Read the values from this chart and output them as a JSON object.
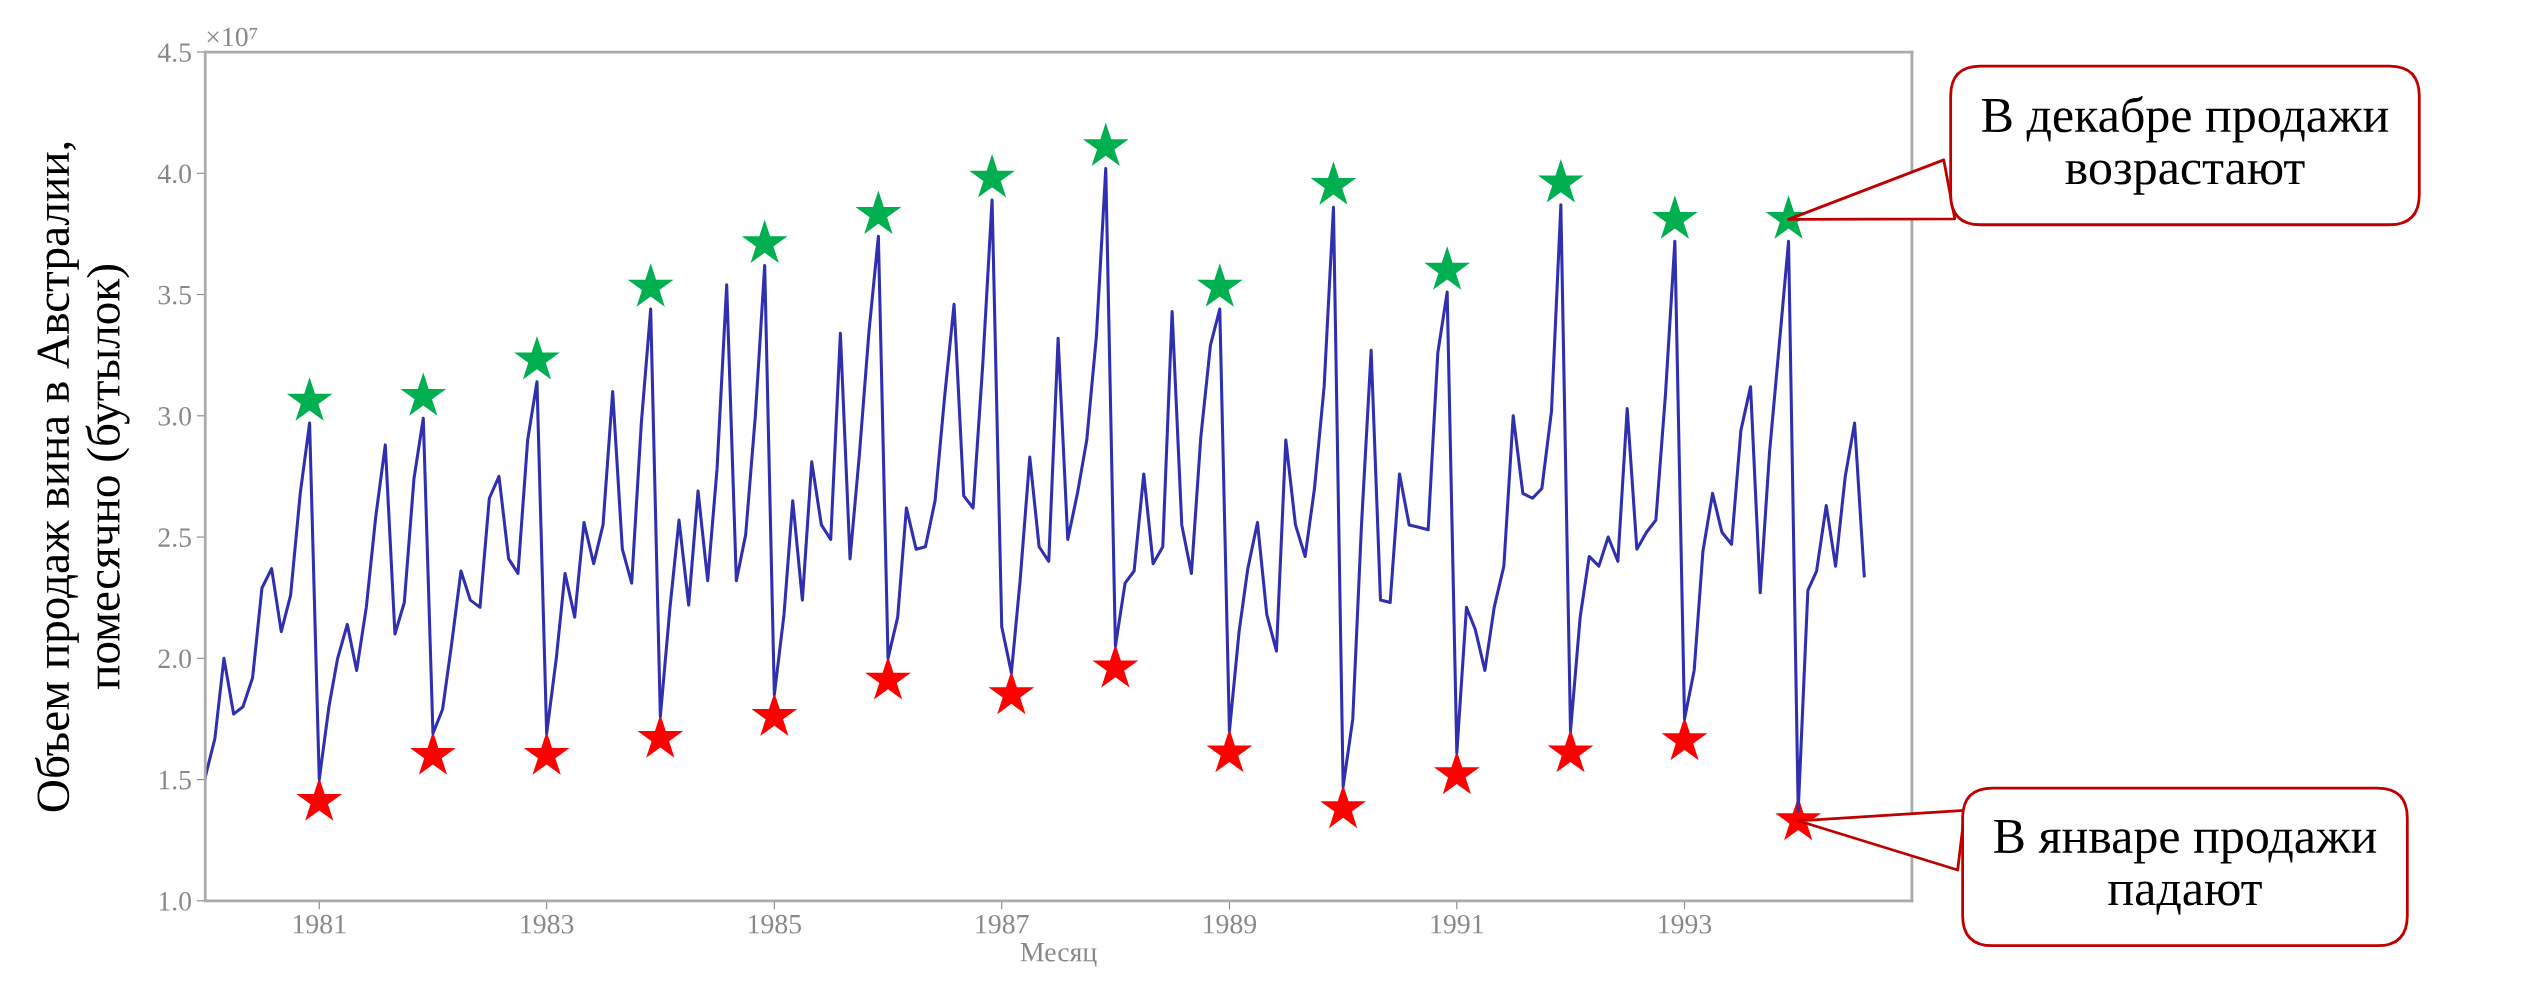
{
  "chart_data": {
    "type": "line",
    "ylabel": "Объем продаж вина в Австралии,\nпомесячно (бутылок)",
    "xlabel": "Месяц",
    "xlim": [
      "1980-01",
      "1995-01"
    ],
    "xticks": [
      "1981",
      "1983",
      "1985",
      "1987",
      "1989",
      "1991",
      "1993"
    ],
    "ylim": [
      1.0,
      4.5
    ],
    "yticks": [
      {
        "value": 1.0,
        "label": "1.0"
      },
      {
        "value": 1.5,
        "label": "1.5"
      },
      {
        "value": 2.0,
        "label": "2.0"
      },
      {
        "value": 2.5,
        "label": "2.5"
      },
      {
        "value": 3.0,
        "label": "3.0"
      },
      {
        "value": 3.5,
        "label": "3.5"
      },
      {
        "value": 4.0,
        "label": "4.0"
      },
      {
        "value": 4.5,
        "label": "4.5"
      }
    ],
    "grid": false,
    "legend": false,
    "series": [
      {
        "color": "#2f2fb0",
        "marker": "none",
        "x": [
          "1980-01",
          "1980-02",
          "1980-03",
          "1980-04",
          "1980-05",
          "1980-06",
          "1980-07",
          "1980-08",
          "1980-09",
          "1980-10",
          "1980-11",
          "1980-12",
          "1981-01",
          "1981-02",
          "1981-03",
          "1981-04",
          "1981-05",
          "1981-06",
          "1981-07",
          "1981-08",
          "1981-09",
          "1981-10",
          "1981-11",
          "1981-12",
          "1982-01",
          "1982-02",
          "1982-03",
          "1982-04",
          "1982-05",
          "1982-06",
          "1982-07",
          "1982-08",
          "1982-09",
          "1982-10",
          "1982-11",
          "1982-12",
          "1983-01",
          "1983-02",
          "1983-03",
          "1983-04",
          "1983-05",
          "1983-06",
          "1983-07",
          "1983-08",
          "1983-09",
          "1983-10",
          "1983-11",
          "1983-12",
          "1984-01",
          "1984-02",
          "1984-03",
          "1984-04",
          "1984-05",
          "1984-06",
          "1984-07",
          "1984-08",
          "1984-09",
          "1984-10",
          "1984-11",
          "1984-12",
          "1985-01",
          "1985-02",
          "1985-03",
          "1985-04",
          "1985-05",
          "1985-06",
          "1985-07",
          "1985-08",
          "1985-09",
          "1985-10",
          "1985-11",
          "1985-12",
          "1986-01",
          "1986-02",
          "1986-03",
          "1986-04",
          "1986-05",
          "1986-06",
          "1986-07",
          "1986-08",
          "1986-09",
          "1986-10",
          "1986-11",
          "1986-12",
          "1987-01",
          "1987-02",
          "1987-03",
          "1987-04",
          "1987-05",
          "1987-06",
          "1987-07",
          "1987-08",
          "1987-09",
          "1987-10",
          "1987-11",
          "1987-12",
          "1988-01",
          "1988-02",
          "1988-03",
          "1988-04",
          "1988-05",
          "1988-06",
          "1988-07",
          "1988-08",
          "1988-09",
          "1988-10",
          "1988-11",
          "1988-12",
          "1989-01",
          "1989-02",
          "1989-03",
          "1989-04",
          "1989-05",
          "1989-06",
          "1989-07",
          "1989-08",
          "1989-09",
          "1989-10",
          "1989-11",
          "1989-12",
          "1990-01",
          "1990-02",
          "1990-03",
          "1990-04",
          "1990-05",
          "1990-06",
          "1990-07",
          "1990-08",
          "1990-09",
          "1990-10",
          "1990-11",
          "1990-12",
          "1991-01",
          "1991-02",
          "1991-03",
          "1991-04",
          "1991-05",
          "1991-06",
          "1991-07",
          "1991-08",
          "1991-09",
          "1991-10",
          "1991-11",
          "1991-12",
          "1992-01",
          "1992-02",
          "1992-03",
          "1992-04",
          "1992-05",
          "1992-06",
          "1992-07",
          "1992-08",
          "1992-09",
          "1992-10",
          "1992-11",
          "1992-12",
          "1993-01",
          "1993-02",
          "1993-03",
          "1993-04",
          "1993-05",
          "1993-06",
          "1993-07",
          "1993-08",
          "1993-09",
          "1993-10",
          "1993-11",
          "1993-12",
          "1994-01",
          "1994-02",
          "1994-03",
          "1994-04",
          "1994-05",
          "1994-06",
          "1994-07",
          "1994-08"
        ],
        "values": [
          1.51,
          1.67,
          2.0,
          1.77,
          1.8,
          1.92,
          2.29,
          2.37,
          2.11,
          2.26,
          2.68,
          2.97,
          1.5,
          1.8,
          2.0,
          2.14,
          1.95,
          2.21,
          2.58,
          2.88,
          2.1,
          2.23,
          2.74,
          2.99,
          1.69,
          1.79,
          2.05,
          2.36,
          2.24,
          2.21,
          2.66,
          2.75,
          2.41,
          2.35,
          2.9,
          3.14,
          1.69,
          2.0,
          2.35,
          2.17,
          2.56,
          2.39,
          2.55,
          3.1,
          2.45,
          2.31,
          2.97,
          3.44,
          1.76,
          2.21,
          2.57,
          2.22,
          2.69,
          2.32,
          2.78,
          3.54,
          2.32,
          2.51,
          3.0,
          3.62,
          1.85,
          2.18,
          2.65,
          2.24,
          2.81,
          2.55,
          2.49,
          3.34,
          2.41,
          2.84,
          3.35,
          3.74,
          2.0,
          2.17,
          2.62,
          2.45,
          2.46,
          2.65,
          3.07,
          3.46,
          2.67,
          2.62,
          3.21,
          3.89,
          2.13,
          1.94,
          2.32,
          2.83,
          2.46,
          2.4,
          3.32,
          2.49,
          2.68,
          2.9,
          3.33,
          4.02,
          2.05,
          2.31,
          2.36,
          2.76,
          2.39,
          2.46,
          3.43,
          2.55,
          2.35,
          2.91,
          3.29,
          3.44,
          1.7,
          2.11,
          2.37,
          2.56,
          2.18,
          2.03,
          2.9,
          2.55,
          2.42,
          2.7,
          3.12,
          3.86,
          1.47,
          1.75,
          2.55,
          3.27,
          2.24,
          2.23,
          2.76,
          2.55,
          2.54,
          2.53,
          3.26,
          3.51,
          1.61,
          2.21,
          2.12,
          1.95,
          2.21,
          2.38,
          3.0,
          2.68,
          2.66,
          2.7,
          3.02,
          3.87,
          1.7,
          2.17,
          2.42,
          2.38,
          2.5,
          2.4,
          3.03,
          2.45,
          2.52,
          2.57,
          3.09,
          3.72,
          1.75,
          1.95,
          2.44,
          2.68,
          2.52,
          2.47,
          2.94,
          3.12,
          2.27,
          2.85,
          3.29,
          3.72,
          1.37,
          2.28,
          2.36,
          2.63,
          2.38,
          2.75,
          2.97,
          2.34
        ]
      },
      {
        "type": "scatter",
        "color": "#00b050",
        "marker": "star",
        "x": [
          "1980-12",
          "1981-12",
          "1982-12",
          "1983-12",
          "1984-12",
          "1985-12",
          "1986-12",
          "1987-12",
          "1988-12",
          "1989-12",
          "1990-12",
          "1991-12",
          "1992-12",
          "1993-12"
        ],
        "values": [
          3.06,
          3.08,
          3.23,
          3.53,
          3.71,
          3.83,
          3.98,
          4.11,
          3.53,
          3.95,
          3.6,
          3.96,
          3.81,
          3.81
        ]
      },
      {
        "type": "scatter",
        "color": "#ff0000",
        "marker": "star",
        "x": [
          "1981-01",
          "1982-01",
          "1983-01",
          "1984-01",
          "1985-01",
          "1986-01",
          "1987-02",
          "1988-01",
          "1989-01",
          "1990-01",
          "1991-01",
          "1992-01",
          "1993-01",
          "1994-01"
        ],
        "values": [
          1.41,
          1.6,
          1.6,
          1.67,
          1.76,
          1.91,
          1.85,
          1.96,
          1.61,
          1.38,
          1.52,
          1.61,
          1.66,
          1.33
        ]
      }
    ],
    "annotations": [
      "×10⁷",
      {
        "text": "В декабре продажи\nвозрастают",
        "x": "1993-12",
        "y": 3.81
      },
      {
        "text": "В январе продажи\nпадают",
        "x": "1994-01",
        "y": 1.33
      }
    ]
  }
}
